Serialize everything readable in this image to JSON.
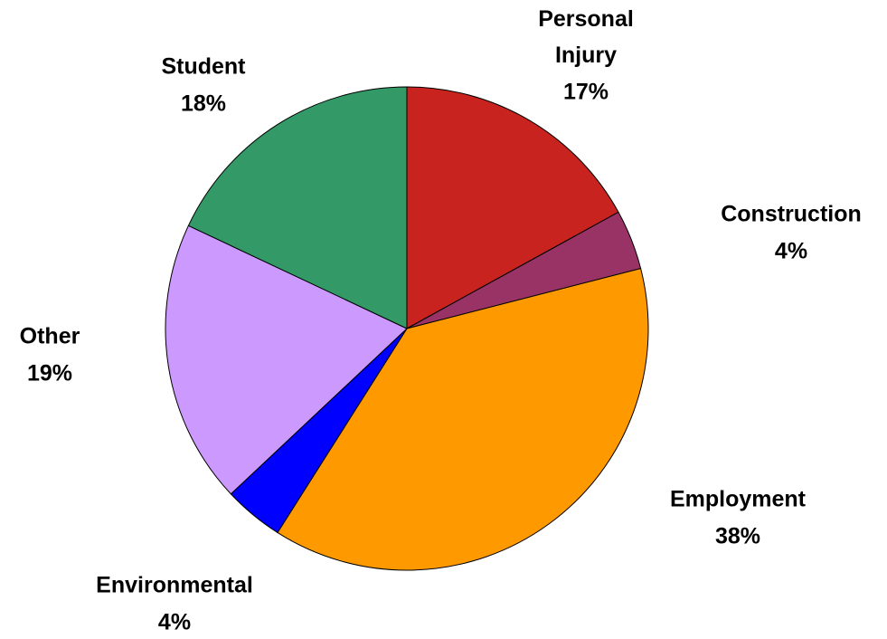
{
  "chart_data": {
    "type": "pie",
    "categories": [
      "Personal Injury",
      "Construction",
      "Employment",
      "Environmental",
      "Other",
      "Student"
    ],
    "values": [
      17,
      4,
      38,
      4,
      19,
      18
    ],
    "value_labels": [
      "17%",
      "4%",
      "38%",
      "4%",
      "19%",
      "18%"
    ],
    "colors": [
      "#C8231E",
      "#993366",
      "#FF9900",
      "#0000FF",
      "#CC99FF",
      "#339966"
    ]
  }
}
